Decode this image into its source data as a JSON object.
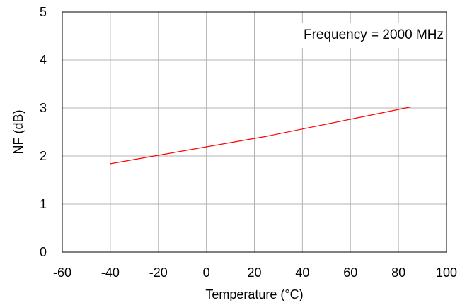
{
  "chart_data": {
    "type": "line",
    "title": "",
    "xlabel": "Temperature (°C)",
    "ylabel": "NF (dB)",
    "xlim": [
      -60,
      100
    ],
    "ylim": [
      0,
      5
    ],
    "x_ticks": [
      -60,
      -40,
      -20,
      0,
      20,
      40,
      60,
      80,
      100
    ],
    "y_ticks": [
      0,
      1,
      2,
      3,
      4,
      5
    ],
    "grid": true,
    "annotation": "Frequency = 2000 MHz",
    "series": [
      {
        "x": [
          -40,
          25,
          85
        ],
        "values": [
          1.84,
          2.41,
          3.02
        ],
        "color": "#ff0000"
      }
    ]
  }
}
